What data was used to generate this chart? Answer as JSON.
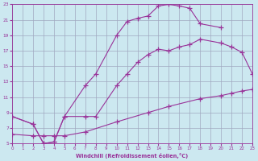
{
  "xlabel": "Windchill (Refroidissement éolien,°C)",
  "bg_color": "#cce8f0",
  "line_color": "#993399",
  "grid_color": "#a0a8c0",
  "xlim": [
    0,
    23
  ],
  "ylim": [
    5,
    23
  ],
  "xticks": [
    0,
    1,
    2,
    3,
    4,
    5,
    6,
    7,
    8,
    9,
    10,
    11,
    12,
    13,
    14,
    15,
    16,
    17,
    18,
    19,
    20,
    21,
    22,
    23
  ],
  "yticks": [
    5,
    7,
    9,
    11,
    13,
    15,
    17,
    19,
    21,
    23
  ],
  "line1_x": [
    0,
    2,
    3,
    4,
    5,
    7,
    8,
    10,
    11,
    12,
    13,
    14,
    15,
    16,
    17,
    18,
    20
  ],
  "line1_y": [
    8.5,
    7.5,
    5,
    5.2,
    8.5,
    12.5,
    14,
    19,
    20.8,
    21.2,
    21.5,
    22.8,
    23.0,
    22.8,
    22.5,
    20.5,
    20.0
  ],
  "line2_x": [
    0,
    2,
    3,
    4,
    5,
    7,
    8,
    10,
    11,
    12,
    13,
    14,
    15,
    16,
    17,
    18,
    20,
    21,
    22,
    23
  ],
  "line2_y": [
    8.5,
    7.5,
    5,
    5.2,
    8.5,
    8.5,
    8.5,
    12.5,
    14.0,
    15.5,
    16.5,
    17.2,
    17.0,
    17.5,
    17.8,
    18.5,
    18.0,
    17.5,
    16.8,
    14.0
  ],
  "line3_x": [
    0,
    2,
    3,
    4,
    5,
    7,
    10,
    13,
    15,
    18,
    20,
    21,
    22,
    23
  ],
  "line3_y": [
    6.2,
    6.0,
    6.0,
    6.0,
    6.0,
    6.5,
    7.8,
    9.0,
    9.8,
    10.8,
    11.2,
    11.5,
    11.8,
    12.0
  ]
}
